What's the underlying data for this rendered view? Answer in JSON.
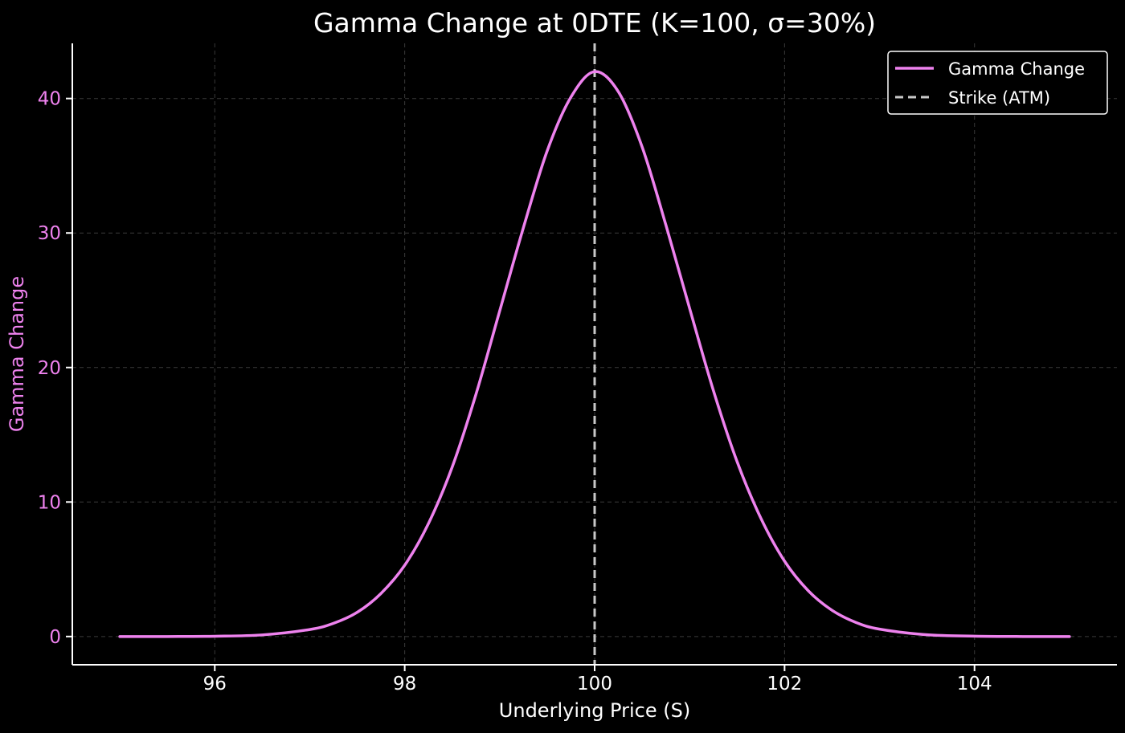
{
  "chart_data": {
    "type": "line",
    "title": "Gamma Change at 0DTE (K=100, σ=30%)",
    "xlabel": "Underlying Price (S)",
    "ylabel": "Gamma Change",
    "xlim": [
      94.5,
      105.5
    ],
    "ylim": [
      -2.1,
      44.1
    ],
    "xticks": [
      96,
      98,
      100,
      102,
      104
    ],
    "yticks": [
      0,
      10,
      20,
      30,
      40
    ],
    "grid": true,
    "legend_position": "top-right",
    "series": [
      {
        "name": "Gamma Change",
        "style": "solid",
        "color": "#ee82ee",
        "x": [
          95.0,
          95.5,
          96.0,
          96.5,
          97.0,
          97.25,
          97.5,
          97.75,
          98.0,
          98.25,
          98.5,
          98.75,
          99.0,
          99.25,
          99.5,
          99.75,
          100.0,
          100.25,
          100.5,
          100.75,
          101.0,
          101.25,
          101.5,
          101.75,
          102.0,
          102.25,
          102.5,
          102.75,
          103.0,
          103.5,
          104.0,
          104.5,
          105.0
        ],
        "y": [
          0.0,
          0.0,
          0.02,
          0.12,
          0.52,
          0.98,
          1.8,
          3.2,
          5.3,
          8.4,
          12.6,
          18.0,
          24.2,
          30.4,
          36.1,
          40.1,
          42.0,
          40.5,
          36.4,
          30.6,
          24.4,
          18.3,
          13.0,
          8.8,
          5.6,
          3.4,
          1.95,
          1.05,
          0.55,
          0.13,
          0.03,
          0.0,
          0.0
        ]
      },
      {
        "name": "Strike (ATM)",
        "style": "dashed",
        "color": "#c8c8c8",
        "x_value": 100
      }
    ]
  },
  "colors": {
    "background": "#000000",
    "curve": "#ee82ee",
    "strike_line": "#c8c8c8",
    "y_axis_label": "#ee82ee",
    "text": "#ffffff"
  }
}
